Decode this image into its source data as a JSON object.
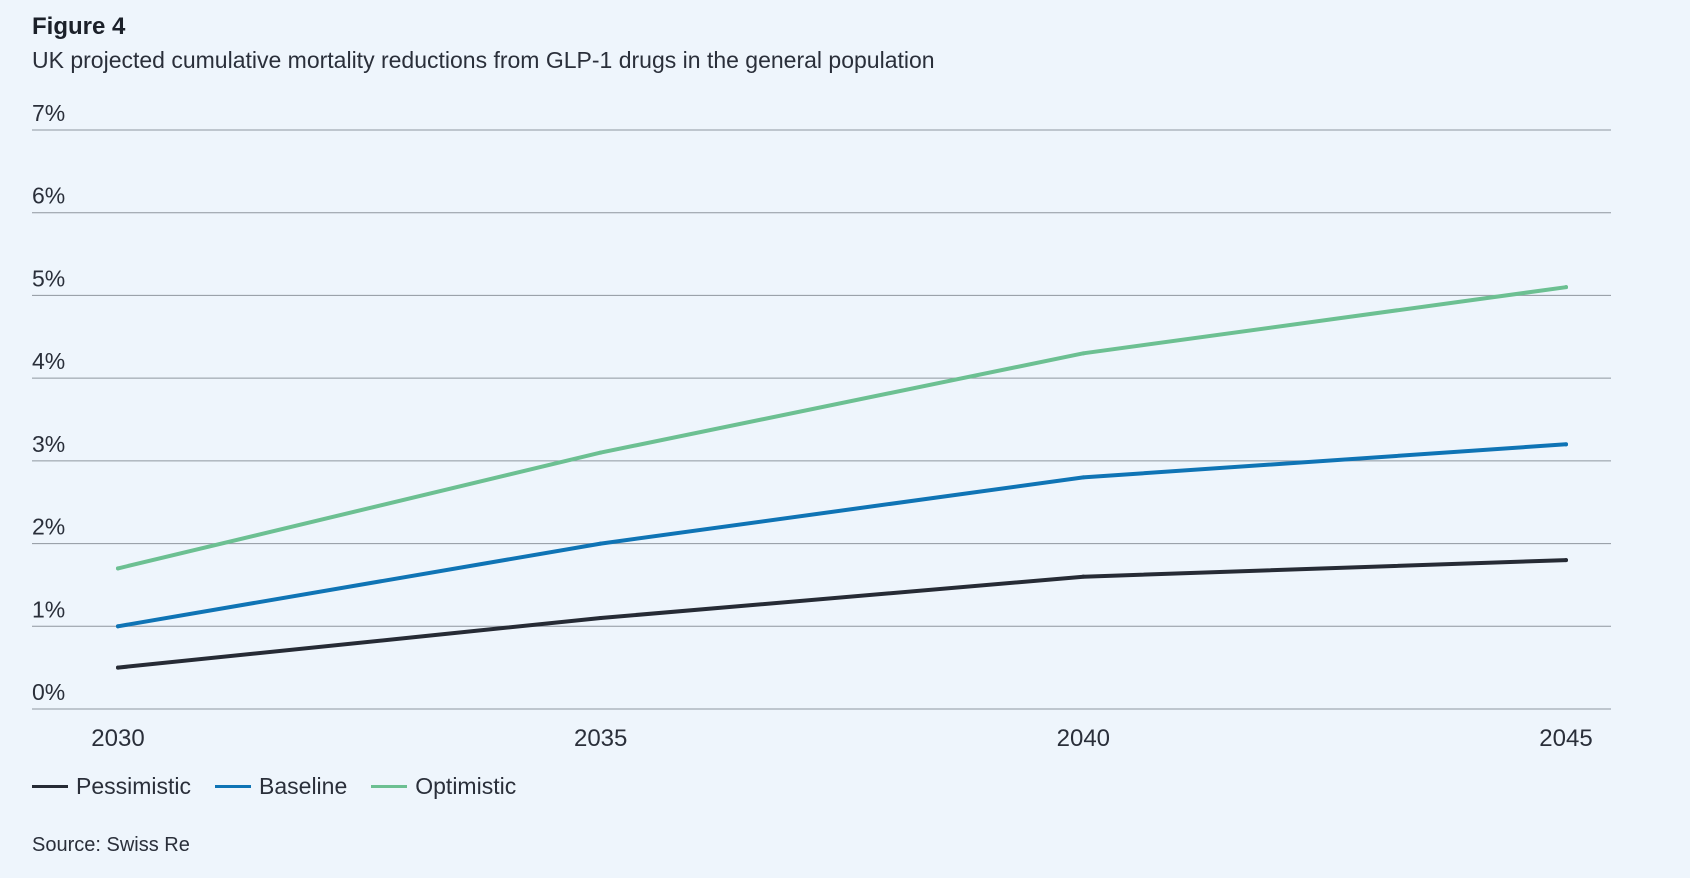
{
  "figure": {
    "label": "Figure 4",
    "title": "UK projected cumulative mortality reductions from GLP-1 drugs in the general population",
    "source": "Source: Swiss Re"
  },
  "colors": {
    "background": "#eef5fc",
    "gridline": "#8f969f",
    "axis_text": "#2a2f3a"
  },
  "chart_data": {
    "type": "line",
    "title": "UK projected cumulative mortality reductions from GLP-1 drugs in the general population",
    "xlabel": "",
    "ylabel": "",
    "x": [
      2030,
      2035,
      2040,
      2045
    ],
    "x_tick_labels": [
      "2030",
      "2035",
      "2040",
      "2045"
    ],
    "ylim": [
      0,
      7
    ],
    "y_ticks": [
      0,
      1,
      2,
      3,
      4,
      5,
      6,
      7
    ],
    "y_tick_labels": [
      "0%",
      "1%",
      "2%",
      "3%",
      "4%",
      "5%",
      "6%",
      "7%"
    ],
    "grid": true,
    "legend_position": "bottom-left",
    "series": [
      {
        "name": "Pessimistic",
        "color": "#262b35",
        "values": [
          0.5,
          1.1,
          1.6,
          1.8
        ]
      },
      {
        "name": "Baseline",
        "color": "#0f74b5",
        "values": [
          1.0,
          2.0,
          2.8,
          3.2
        ]
      },
      {
        "name": "Optimistic",
        "color": "#6cc092",
        "values": [
          1.7,
          3.1,
          4.3,
          5.1
        ]
      }
    ]
  }
}
